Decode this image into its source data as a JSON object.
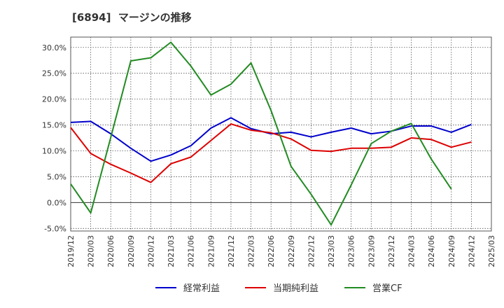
{
  "chart_data": {
    "type": "line",
    "title": "[6894]  マージンの推移",
    "xlabel": "",
    "ylabel": "",
    "ylim": [
      -5.5,
      32
    ],
    "yticks": [
      "-5.0%",
      "0.0%",
      "5.0%",
      "10.0%",
      "15.0%",
      "20.0%",
      "25.0%",
      "30.0%"
    ],
    "ytick_values": [
      -5,
      0,
      5,
      10,
      15,
      20,
      25,
      30
    ],
    "categories": [
      "2019/12",
      "2020/03",
      "2020/06",
      "2020/09",
      "2020/12",
      "2021/03",
      "2021/06",
      "2021/09",
      "2021/12",
      "2022/03",
      "2022/06",
      "2022/09",
      "2022/12",
      "2023/03",
      "2023/06",
      "2023/09",
      "2023/12",
      "2024/03",
      "2024/06",
      "2024/09",
      "2024/12",
      "2025/03"
    ],
    "grid": true,
    "legend_position": "bottom",
    "series": [
      {
        "name": "経常利益",
        "color": "#0000cc",
        "values": [
          15.5,
          15.7,
          13.3,
          10.5,
          8.0,
          9.2,
          11.0,
          14.4,
          16.4,
          14.3,
          13.3,
          13.6,
          12.7,
          13.6,
          14.4,
          13.3,
          13.8,
          14.8,
          14.8,
          13.6,
          15.1,
          null
        ]
      },
      {
        "name": "当期純利益",
        "color": "#dd0000",
        "values": [
          14.5,
          9.5,
          7.4,
          5.7,
          3.9,
          7.5,
          8.8,
          12.0,
          15.2,
          14.0,
          13.5,
          12.3,
          10.1,
          9.9,
          10.5,
          10.5,
          10.7,
          12.5,
          12.2,
          10.7,
          11.7,
          null
        ]
      },
      {
        "name": "営業CF",
        "color": "#228b22",
        "values": [
          3.6,
          -2.0,
          12.6,
          27.4,
          28.0,
          31.0,
          26.4,
          20.8,
          22.9,
          27.0,
          17.8,
          7.0,
          1.6,
          -4.3,
          3.4,
          11.4,
          13.8,
          15.3,
          8.4,
          2.6,
          null,
          null
        ]
      }
    ]
  }
}
